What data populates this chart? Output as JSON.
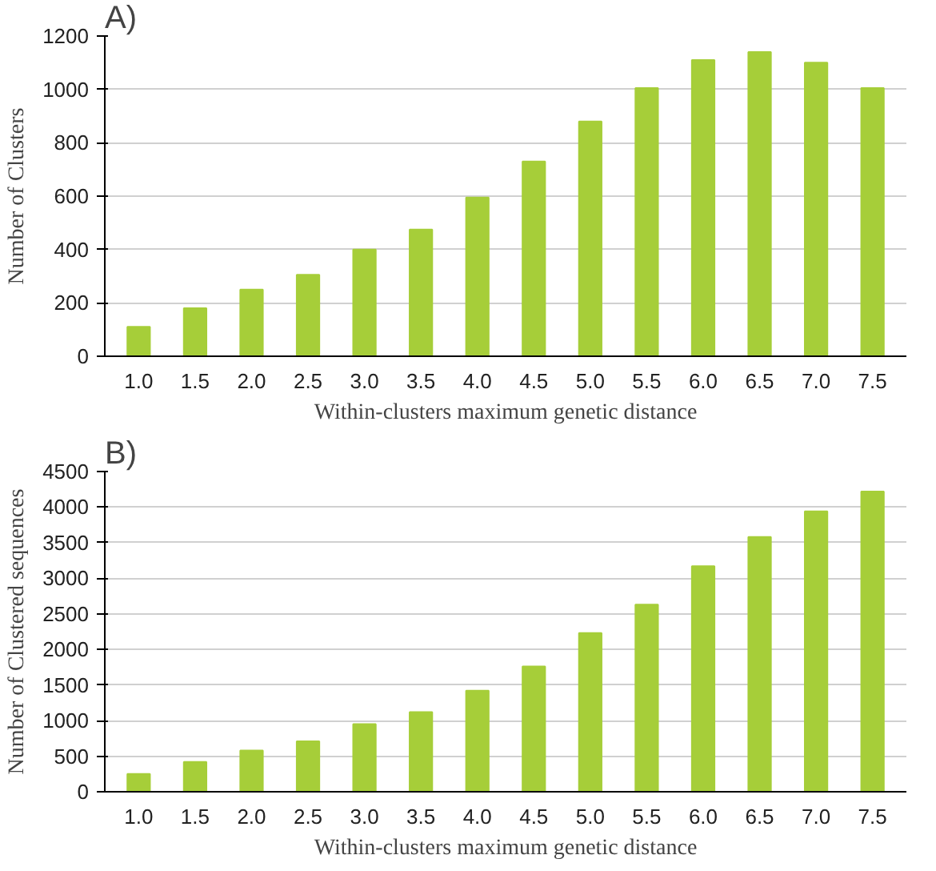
{
  "chart_data": [
    {
      "type": "bar",
      "annotations": [
        "A)"
      ],
      "xlabel": "Within-clusters maximum genetic distance",
      "ylabel": "Number of Clusters",
      "categories": [
        "1.0",
        "1.5",
        "2.0",
        "2.5",
        "3.0",
        "3.5",
        "4.0",
        "4.5",
        "5.0",
        "5.5",
        "6.0",
        "6.5",
        "7.0",
        "7.5"
      ],
      "values": [
        110,
        180,
        250,
        305,
        400,
        475,
        595,
        730,
        880,
        1005,
        1110,
        1140,
        1100,
        1005
      ],
      "color": "#a6ce39",
      "ylim": [
        0,
        1200
      ],
      "yticks": [
        0,
        200,
        400,
        600,
        800,
        1000,
        1200
      ],
      "grid": "y"
    },
    {
      "type": "bar",
      "annotations": [
        "B)"
      ],
      "xlabel": "Within-clusters maximum genetic distance",
      "ylabel": "Number of Clustered sequences",
      "categories": [
        "1.0",
        "1.5",
        "2.0",
        "2.5",
        "3.0",
        "3.5",
        "4.0",
        "4.5",
        "5.0",
        "5.5",
        "6.0",
        "6.5",
        "7.0",
        "7.5"
      ],
      "values": [
        250,
        420,
        580,
        710,
        950,
        1120,
        1420,
        1760,
        2230,
        2630,
        3170,
        3580,
        3940,
        4220
      ],
      "color": "#a6ce39",
      "ylim": [
        0,
        4500
      ],
      "yticks": [
        0,
        500,
        1000,
        1500,
        2000,
        2500,
        3000,
        3500,
        4000,
        4500
      ],
      "grid": "y"
    }
  ]
}
